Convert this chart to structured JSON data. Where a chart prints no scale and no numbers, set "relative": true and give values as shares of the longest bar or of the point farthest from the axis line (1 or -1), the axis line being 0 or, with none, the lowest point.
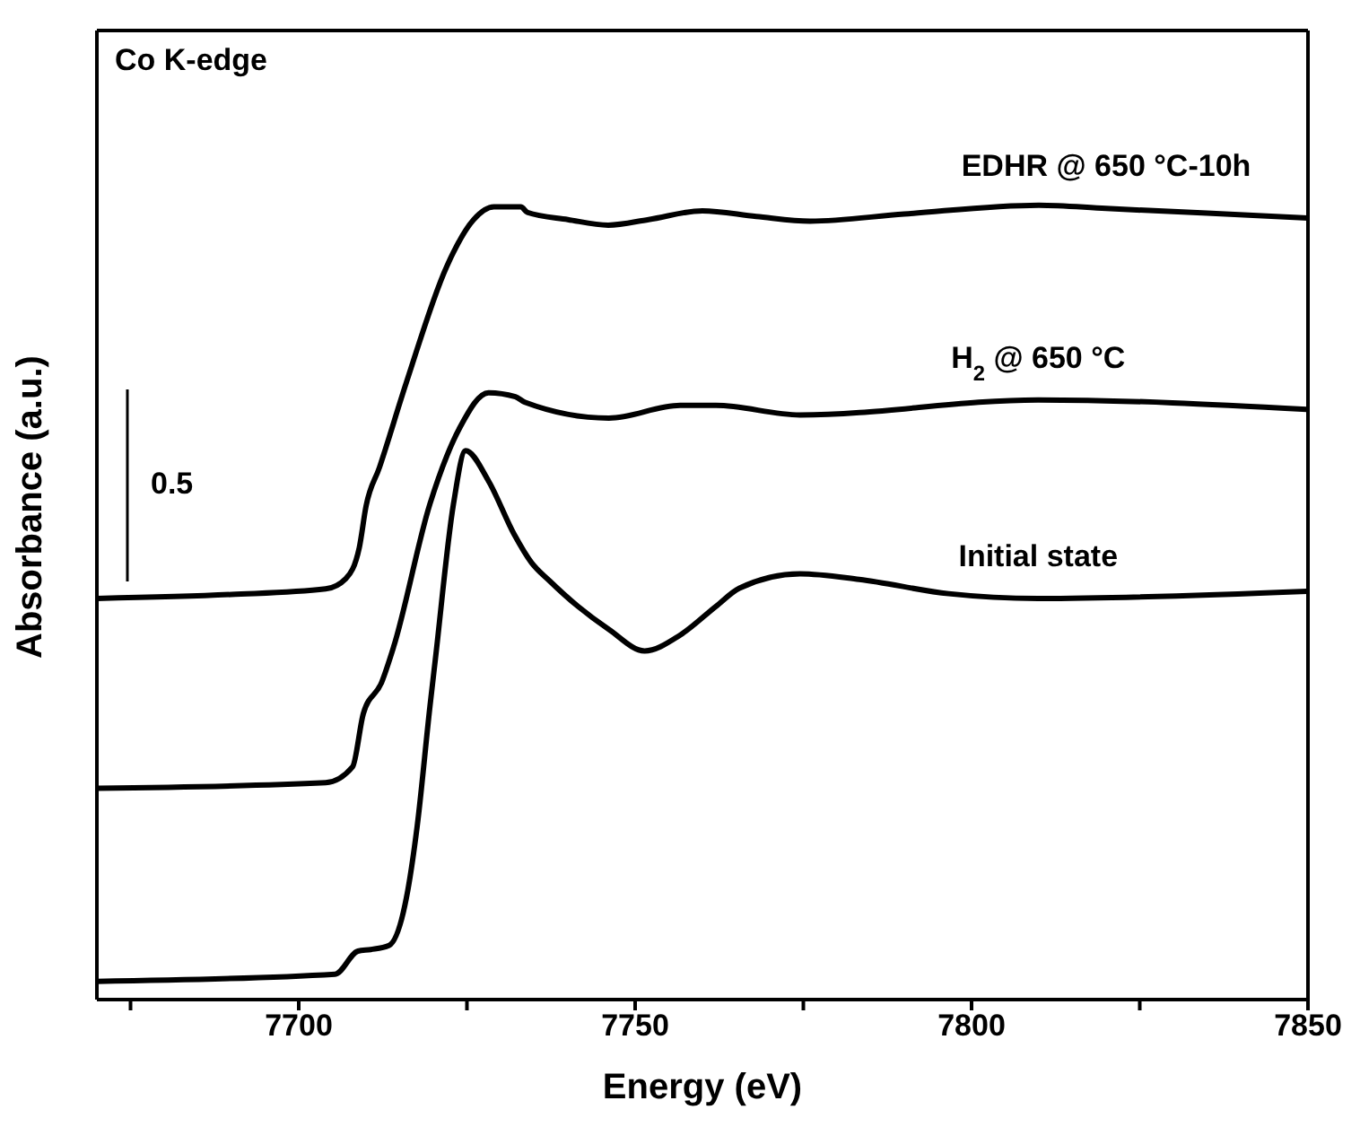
{
  "chart_data": {
    "type": "line",
    "relative": true,
    "xlabel": "Energy (eV)",
    "ylabel": "Absorbance (a.u.)",
    "annotations": [
      "Co K-edge",
      "0.5"
    ],
    "xlim": [
      7670,
      7850
    ],
    "xticks": [
      {
        "value": 7675,
        "label": null
      },
      7700,
      {
        "value": 7725,
        "label": null
      },
      7750,
      {
        "value": 7775,
        "label": null
      },
      7800,
      {
        "value": 7825,
        "label": null
      },
      7850
    ],
    "marker": "none",
    "line_style": "solid",
    "series": [
      {
        "name": "EDHR @ 650 °C-10h",
        "color": "#000000",
        "x": [
          7670,
          7690,
          7704,
          7707,
          7709,
          7710,
          7712,
          7716,
          7722,
          7726,
          7729,
          7733,
          7734,
          7740,
          7746,
          7752,
          7760,
          7768,
          7776,
          7790,
          7810,
          7820,
          7850
        ],
        "values": [
          0.505,
          0.51,
          0.517,
          0.53,
          0.569,
          0.621,
          0.67,
          0.777,
          0.923,
          0.982,
          0.998,
          0.998,
          0.991,
          0.982,
          0.975,
          0.982,
          0.993,
          0.986,
          0.98,
          0.989,
          1.0,
          0.996,
          0.984
        ]
      },
      {
        "name": "H$_{2}$ @ 650 °C",
        "color": "#000000",
        "x": [
          7670,
          7704,
          7708,
          7709.6,
          7712.3,
          7714.1,
          7719.5,
          7724,
          7728.2,
          7732.2,
          7733.6,
          7746.1,
          7756.7,
          7762,
          7774.5,
          7809.9,
          7849.8
        ],
        "values": [
          0.266,
          0.273,
          0.293,
          0.36,
          0.399,
          0.444,
          0.624,
          0.721,
          0.764,
          0.759,
          0.752,
          0.732,
          0.748,
          0.748,
          0.736,
          0.755,
          0.743
        ]
      },
      {
        "name": "Initial state",
        "color": "#000000",
        "x": [
          7670,
          7705.4,
          7708.8,
          7710.7,
          7713.4,
          7716,
          7717.6,
          7719.5,
          7720.3,
          7723,
          7724.8,
          7728.2,
          7732,
          7734.6,
          7737.3,
          7741.5,
          7746.1,
          7751.4,
          7756.7,
          7762,
          7765.5,
          7774.5,
          7783.3,
          7796.6,
          7809.9,
          7849.8
        ],
        "values": [
          0.023,
          0.032,
          0.061,
          0.063,
          0.068,
          0.128,
          0.218,
          0.369,
          0.428,
          0.624,
          0.691,
          0.653,
          0.586,
          0.55,
          0.527,
          0.495,
          0.466,
          0.439,
          0.459,
          0.495,
          0.518,
          0.536,
          0.529,
          0.511,
          0.505,
          0.514
        ]
      }
    ]
  }
}
